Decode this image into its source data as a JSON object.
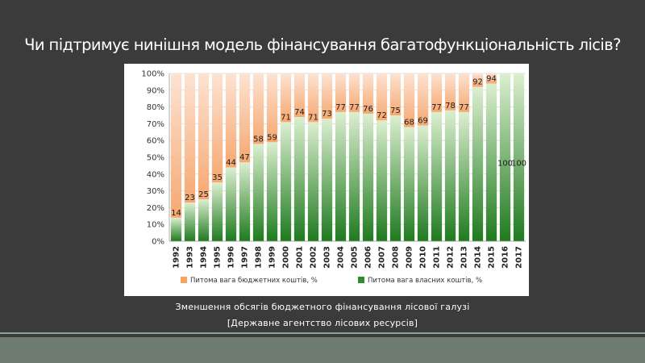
{
  "slide": {
    "title": "Чи підтримує нинішня модель фінансування багатофункціональність лісів?",
    "caption_line1": "Зменшення обсягів бюджетного фінансування лісової галузі",
    "caption_line2": "[Державне агентство лісових ресурсів]"
  },
  "colors": {
    "background": "#3b3b3b",
    "own_funds": "#2e8b2e",
    "budget_funds": "#f4a460"
  },
  "chart_data": {
    "type": "bar",
    "stacked": true,
    "percent_stacked": true,
    "categories": [
      "1992",
      "1993",
      "1994",
      "1995",
      "1996",
      "1997",
      "1998",
      "1999",
      "2000",
      "2001",
      "2002",
      "2003",
      "2004",
      "2005",
      "2006",
      "2007",
      "2008",
      "2009",
      "2010",
      "2011",
      "2012",
      "2013",
      "2014",
      "2015",
      "2016",
      "2017"
    ],
    "series": [
      {
        "name": "Питома вага власних коштів, %",
        "values": [
          14,
          23,
          25,
          35,
          44,
          47,
          58,
          59,
          71,
          74,
          71,
          73,
          77,
          77,
          76,
          72,
          75,
          68,
          69,
          77,
          78,
          77,
          92,
          94,
          100,
          100
        ]
      },
      {
        "name": "Питома вага бюджетних коштів, %",
        "values": [
          86,
          77,
          75,
          65,
          56,
          53,
          42,
          41,
          29,
          26,
          29,
          27,
          23,
          23,
          24,
          28,
          25,
          32,
          31,
          23,
          22,
          23,
          8,
          6,
          0,
          0
        ]
      }
    ],
    "data_labels": [
      "14",
      "23",
      "25",
      "35",
      "44",
      "47",
      "58",
      "59",
      "71",
      "74",
      "71",
      "73",
      "77",
      "77",
      "76",
      "72",
      "75",
      "68",
      "69",
      "77",
      "78",
      "77",
      "92",
      "94",
      "100",
      "100"
    ],
    "y_ticks": [
      "0%",
      "10%",
      "20%",
      "30%",
      "40%",
      "50%",
      "60%",
      "70%",
      "80%",
      "90%",
      "100%"
    ],
    "ylim": [
      0,
      100
    ],
    "legend_position": "bottom",
    "grid": true
  }
}
